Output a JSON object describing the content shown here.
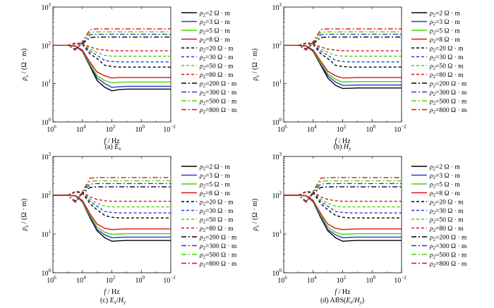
{
  "figure": {
    "ylabel_html": "ρ<sub>s</sub>/(Ω·m)",
    "ylabel_parts": [
      "ρ",
      "s",
      " / (Ω · m)"
    ],
    "xlabel_parts": [
      "f",
      " / Hz"
    ],
    "x_tick_labels": [
      {
        "base": "10",
        "exp": "6"
      },
      {
        "base": "10",
        "exp": "4"
      },
      {
        "base": "10",
        "exp": "2"
      },
      {
        "base": "10",
        "exp": "0"
      },
      {
        "base": "10",
        "exp": "−2"
      }
    ],
    "y_tick_labels": [
      {
        "base": "10",
        "exp": "3"
      },
      {
        "base": "10",
        "exp": "2"
      },
      {
        "base": "10",
        "exp": "1"
      },
      {
        "base": "10",
        "exp": "0"
      }
    ]
  },
  "legend_entries": [
    {
      "rho": "ρ",
      "sub": "2",
      "text": "=2 Ω · m",
      "color": "#000000",
      "dash": "solid"
    },
    {
      "rho": "ρ",
      "sub": "2",
      "text": "=3 Ω · m",
      "color": "#1f3fd0",
      "dash": "solid"
    },
    {
      "rho": "ρ",
      "sub": "2",
      "text": "=5 Ω · m",
      "color": "#4fd000",
      "dash": "solid"
    },
    {
      "rho": "ρ",
      "sub": "2",
      "text": "=8 Ω · m",
      "color": "#e01010",
      "dash": "solid"
    },
    {
      "rho": "ρ",
      "sub": "2",
      "text": "=20 Ω · m",
      "color": "#000000",
      "dash": "dash"
    },
    {
      "rho": "ρ",
      "sub": "2",
      "text": "=30 Ω · m",
      "color": "#1f3fd0",
      "dash": "dash"
    },
    {
      "rho": "ρ",
      "sub": "2",
      "text": "=50 Ω · m",
      "color": "#4fd000",
      "dash": "dash"
    },
    {
      "rho": "ρ",
      "sub": "2",
      "text": "=80 Ω · m",
      "color": "#e01010",
      "dash": "dash"
    },
    {
      "rho": "ρ",
      "sub": "2",
      "text": "=200 Ω · m",
      "color": "#000000",
      "dash": "dashdot"
    },
    {
      "rho": "ρ",
      "sub": "2",
      "text": "=300 Ω · m",
      "color": "#1f3fd0",
      "dashdot": true,
      "dash": "dashdot"
    },
    {
      "rho": "ρ",
      "sub": "2",
      "text": "=500 Ω · m",
      "color": "#4fd000",
      "dash": "dashdot"
    },
    {
      "rho": "ρ",
      "sub": "2",
      "text": "=800 Ω · m",
      "color": "#e01010",
      "dash": "dashdot"
    }
  ],
  "panels": [
    {
      "id": "a",
      "caption_prefix": "(a) ",
      "caption_main": "E",
      "caption_sub": "x",
      "caption_suffix": ""
    },
    {
      "id": "b",
      "caption_prefix": "(b) ",
      "caption_main": "H",
      "caption_sub": "y",
      "caption_suffix": ""
    },
    {
      "id": "c",
      "caption_prefix": "(c) ",
      "caption_main": "E",
      "caption_sub": "x",
      "caption_mid": "/H",
      "caption_sub2": "y"
    },
    {
      "id": "d",
      "caption_prefix": "(d) ABS(",
      "caption_main": "E",
      "caption_sub": "x",
      "caption_mid": "/H",
      "caption_sub2": "y",
      "caption_suffix": ")"
    }
  ],
  "chart_data": [
    {
      "type": "line",
      "panel": "(a) Ex",
      "x_scale": "log",
      "y_scale": "log",
      "xlim": [
        1000000,
        0.01
      ],
      "ylim": [
        1,
        1000
      ],
      "xlabel": "f / Hz",
      "ylabel": "ρs / (Ω·m)",
      "legend": "right",
      "x": [
        1000000,
        100000,
        30000,
        10000,
        3000,
        1000,
        300,
        100,
        30,
        10,
        1,
        0.1,
        0.01
      ],
      "series": [
        {
          "name": "ρ2=2 Ω·m",
          "values": [
            100,
            100,
            95,
            70,
            28,
            12,
            8,
            6.5,
            7.0,
            7.2,
            7.2,
            7.2,
            7.2
          ]
        },
        {
          "name": "ρ2=3 Ω·m",
          "values": [
            100,
            100,
            95,
            72,
            30,
            14,
            10,
            8.0,
            8.3,
            8.5,
            8.5,
            8.5,
            8.5
          ]
        },
        {
          "name": "ρ2=5 Ω·m",
          "values": [
            100,
            100,
            96,
            74,
            32,
            16,
            12,
            10.5,
            10.8,
            11,
            11,
            11,
            11
          ]
        },
        {
          "name": "ρ2=8 Ω·m",
          "values": [
            100,
            100,
            97,
            76,
            36,
            20,
            16,
            14,
            14.5,
            14.5,
            14.5,
            14.5,
            14.5
          ]
        },
        {
          "name": "ρ2=20 Ω·m",
          "values": [
            100,
            100,
            110,
            105,
            60,
            45,
            30,
            28,
            27,
            27,
            27,
            27,
            27
          ]
        },
        {
          "name": "ρ2=30 Ω·m",
          "values": [
            100,
            100,
            112,
            108,
            70,
            55,
            40,
            38,
            37,
            37,
            37,
            37,
            37
          ]
        },
        {
          "name": "ρ2=50 Ω·m",
          "values": [
            100,
            100,
            114,
            110,
            80,
            65,
            55,
            52,
            52,
            52,
            52,
            52,
            52
          ]
        },
        {
          "name": "ρ2=80 Ω·m",
          "values": [
            100,
            100,
            116,
            112,
            90,
            80,
            75,
            72,
            72,
            72,
            72,
            72,
            72
          ]
        },
        {
          "name": "ρ2=200 Ω·m",
          "values": [
            100,
            100,
            80,
            110,
            160,
            165,
            165,
            165,
            165,
            165,
            165,
            165,
            165
          ]
        },
        {
          "name": "ρ2=300 Ω·m",
          "values": [
            100,
            100,
            78,
            115,
            190,
            195,
            195,
            195,
            195,
            195,
            195,
            195,
            195
          ]
        },
        {
          "name": "ρ2=500 Ω·m",
          "values": [
            100,
            100,
            76,
            120,
            220,
            225,
            225,
            225,
            225,
            225,
            225,
            225,
            225
          ]
        },
        {
          "name": "ρ2=800 Ω·m",
          "values": [
            100,
            100,
            75,
            125,
            260,
            270,
            270,
            270,
            270,
            270,
            270,
            270,
            270
          ]
        }
      ]
    },
    {
      "type": "line",
      "panel": "(b) Hy",
      "x_scale": "log",
      "y_scale": "log",
      "xlim": [
        1000000,
        0.01
      ],
      "ylim": [
        1,
        1000
      ],
      "xlabel": "f / Hz",
      "ylabel": "ρs / (Ω·m)",
      "legend": "right",
      "x": [
        1000000,
        100000,
        30000,
        10000,
        3000,
        1000,
        300,
        100,
        30,
        10,
        1,
        0.1,
        0.01
      ],
      "series": [
        {
          "name": "ρ2=2 Ω·m",
          "values": [
            100,
            100,
            95,
            70,
            30,
            14,
            9,
            7.5,
            7.6,
            7.7,
            7.7,
            7.7,
            7.7
          ]
        },
        {
          "name": "ρ2=3 Ω·m",
          "values": [
            100,
            100,
            95,
            72,
            32,
            16,
            11,
            9.0,
            9.1,
            9.2,
            9.2,
            9.2,
            9.2
          ]
        },
        {
          "name": "ρ2=5 Ω·m",
          "values": [
            100,
            100,
            96,
            74,
            34,
            18,
            13,
            11,
            11.2,
            11.3,
            11.3,
            11.3,
            11.3
          ]
        },
        {
          "name": "ρ2=8 Ω·m",
          "values": [
            100,
            100,
            97,
            76,
            38,
            21,
            16,
            14,
            14.2,
            14.5,
            14.5,
            14.5,
            14.5
          ]
        },
        {
          "name": "ρ2=20 Ω·m",
          "values": [
            100,
            100,
            110,
            105,
            60,
            45,
            30,
            28,
            27,
            27,
            27,
            27,
            27
          ]
        },
        {
          "name": "ρ2=30 Ω·m",
          "values": [
            100,
            100,
            112,
            108,
            70,
            55,
            40,
            38,
            37,
            37,
            37,
            37,
            37
          ]
        },
        {
          "name": "ρ2=50 Ω·m",
          "values": [
            100,
            100,
            114,
            110,
            80,
            65,
            55,
            52,
            52,
            52,
            52,
            52,
            52
          ]
        },
        {
          "name": "ρ2=80 Ω·m",
          "values": [
            100,
            100,
            116,
            112,
            90,
            80,
            75,
            72,
            72,
            72,
            72,
            72,
            72
          ]
        },
        {
          "name": "ρ2=200 Ω·m",
          "values": [
            100,
            100,
            80,
            110,
            160,
            165,
            165,
            165,
            165,
            165,
            165,
            165,
            165
          ]
        },
        {
          "name": "ρ2=300 Ω·m",
          "values": [
            100,
            100,
            78,
            115,
            190,
            195,
            195,
            195,
            195,
            195,
            195,
            195,
            195
          ]
        },
        {
          "name": "ρ2=500 Ω·m",
          "values": [
            100,
            100,
            76,
            120,
            220,
            225,
            225,
            225,
            225,
            225,
            225,
            225,
            225
          ]
        },
        {
          "name": "ρ2=800 Ω·m",
          "values": [
            100,
            100,
            75,
            125,
            260,
            270,
            270,
            270,
            270,
            270,
            270,
            270,
            270
          ]
        }
      ]
    },
    {
      "type": "line",
      "panel": "(c) Ex/Hy",
      "x_scale": "log",
      "y_scale": "log",
      "xlim": [
        1000000,
        0.01
      ],
      "ylim": [
        1,
        1000
      ],
      "xlabel": "f / Hz",
      "ylabel": "ρs / (Ω·m)",
      "legend": "right",
      "x": [
        1000000,
        100000,
        30000,
        10000,
        3000,
        1000,
        300,
        100,
        30,
        10,
        1,
        0.1,
        0.01
      ],
      "series": [
        {
          "name": "ρ2=2 Ω·m",
          "values": [
            100,
            100,
            96,
            68,
            26,
            12,
            8,
            6.5,
            6.7,
            6.8,
            6.8,
            6.8,
            6.8
          ]
        },
        {
          "name": "ρ2=3 Ω·m",
          "values": [
            100,
            100,
            96,
            70,
            28,
            13,
            9.5,
            8.0,
            8.2,
            8.3,
            8.3,
            8.3,
            8.3
          ]
        },
        {
          "name": "ρ2=5 Ω·m",
          "values": [
            100,
            100,
            97,
            72,
            30,
            15,
            11,
            9.8,
            10,
            10.2,
            10.2,
            10.2,
            10.2
          ]
        },
        {
          "name": "ρ2=8 Ω·m",
          "values": [
            100,
            100,
            98,
            74,
            33,
            18,
            14,
            13,
            13.3,
            13.5,
            13.5,
            13.5,
            13.5
          ]
        },
        {
          "name": "ρ2=20 Ω·m",
          "values": [
            100,
            100,
            120,
            115,
            60,
            42,
            30,
            27,
            26,
            26,
            26,
            26,
            26
          ]
        },
        {
          "name": "ρ2=30 Ω·m",
          "values": [
            100,
            100,
            122,
            118,
            70,
            52,
            38,
            36,
            35,
            35,
            35,
            35,
            35
          ]
        },
        {
          "name": "ρ2=50 Ω·m",
          "values": [
            100,
            100,
            124,
            120,
            80,
            62,
            52,
            50,
            50,
            50,
            50,
            50,
            50
          ]
        },
        {
          "name": "ρ2=80 Ω·m",
          "values": [
            100,
            100,
            126,
            122,
            90,
            78,
            72,
            70,
            70,
            70,
            70,
            70,
            70
          ]
        },
        {
          "name": "ρ2=200 Ω·m",
          "values": [
            100,
            100,
            70,
            110,
            160,
            165,
            165,
            165,
            165,
            165,
            165,
            165,
            165
          ]
        },
        {
          "name": "ρ2=300 Ω·m",
          "values": [
            100,
            100,
            68,
            115,
            195,
            200,
            200,
            200,
            200,
            200,
            200,
            200,
            200
          ]
        },
        {
          "name": "ρ2=500 Ω·m",
          "values": [
            100,
            100,
            66,
            120,
            230,
            235,
            235,
            235,
            235,
            235,
            235,
            235,
            235
          ]
        },
        {
          "name": "ρ2=800 Ω·m",
          "values": [
            100,
            100,
            65,
            125,
            275,
            285,
            285,
            285,
            285,
            285,
            285,
            285,
            285
          ]
        }
      ]
    },
    {
      "type": "line",
      "panel": "(d) ABS(Ex/Hy)",
      "x_scale": "log",
      "y_scale": "log",
      "xlim": [
        1000000,
        0.01
      ],
      "ylim": [
        1,
        1000
      ],
      "xlabel": "f / Hz",
      "ylabel": "ρs / (Ω·m)",
      "legend": "right",
      "x": [
        1000000,
        100000,
        30000,
        10000,
        3000,
        1000,
        300,
        100,
        30,
        10,
        1,
        0.1,
        0.01
      ],
      "series": [
        {
          "name": "ρ2=2 Ω·m",
          "values": [
            100,
            100,
            96,
            68,
            26,
            12,
            8,
            6.5,
            6.7,
            6.8,
            6.8,
            6.8,
            6.8
          ]
        },
        {
          "name": "ρ2=3 Ω·m",
          "values": [
            100,
            100,
            96,
            70,
            28,
            13,
            9.5,
            8.0,
            8.2,
            8.3,
            8.3,
            8.3,
            8.3
          ]
        },
        {
          "name": "ρ2=5 Ω·m",
          "values": [
            100,
            100,
            97,
            72,
            30,
            15,
            11,
            9.8,
            10,
            10.2,
            10.2,
            10.2,
            10.2
          ]
        },
        {
          "name": "ρ2=8 Ω·m",
          "values": [
            100,
            100,
            98,
            74,
            33,
            18,
            14,
            13,
            13.3,
            13.5,
            13.5,
            13.5,
            13.5
          ]
        },
        {
          "name": "ρ2=20 Ω·m",
          "values": [
            100,
            100,
            120,
            115,
            60,
            42,
            30,
            27,
            26,
            26,
            26,
            26,
            26
          ]
        },
        {
          "name": "ρ2=30 Ω·m",
          "values": [
            100,
            100,
            122,
            118,
            70,
            52,
            38,
            36,
            35,
            35,
            35,
            35,
            35
          ]
        },
        {
          "name": "ρ2=50 Ω·m",
          "values": [
            100,
            100,
            124,
            120,
            80,
            62,
            52,
            50,
            50,
            50,
            50,
            50,
            50
          ]
        },
        {
          "name": "ρ2=80 Ω·m",
          "values": [
            100,
            100,
            126,
            122,
            90,
            78,
            72,
            70,
            70,
            70,
            70,
            70,
            70
          ]
        },
        {
          "name": "ρ2=200 Ω·m",
          "values": [
            100,
            100,
            70,
            110,
            160,
            165,
            165,
            165,
            165,
            165,
            165,
            165,
            165
          ]
        },
        {
          "name": "ρ2=300 Ω·m",
          "values": [
            100,
            100,
            68,
            115,
            195,
            200,
            200,
            200,
            200,
            200,
            200,
            200,
            200
          ]
        },
        {
          "name": "ρ2=500 Ω·m",
          "values": [
            100,
            100,
            66,
            120,
            230,
            235,
            235,
            235,
            235,
            235,
            235,
            235,
            235
          ]
        },
        {
          "name": "ρ2=800 Ω·m",
          "values": [
            100,
            100,
            65,
            125,
            275,
            285,
            285,
            285,
            285,
            285,
            285,
            285,
            285
          ]
        }
      ]
    }
  ]
}
